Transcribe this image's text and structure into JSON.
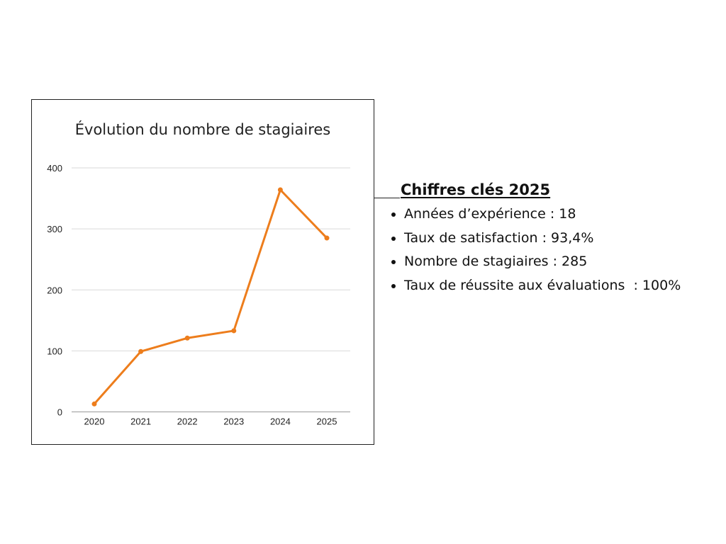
{
  "chart_data": {
    "type": "line",
    "title": "Évolution du nombre de stagiaires",
    "categories": [
      "2020",
      "2021",
      "2022",
      "2023",
      "2024",
      "2025"
    ],
    "values": [
      13,
      99,
      121,
      133,
      364,
      285
    ],
    "yticks": [
      "0",
      "100",
      "200",
      "300",
      "400"
    ],
    "ylim": [
      0,
      400
    ],
    "grid": true,
    "color": "#ED7D1C",
    "xlabel": "",
    "ylabel": ""
  },
  "key_figures": {
    "heading": "Chiffres clés 2025",
    "items": [
      "Années d’expérience : 18",
      "Taux de satisfaction : 93,4%",
      "Nombre de stagiaires : 285",
      "Taux de réussite aux évaluations  : 100%"
    ]
  }
}
